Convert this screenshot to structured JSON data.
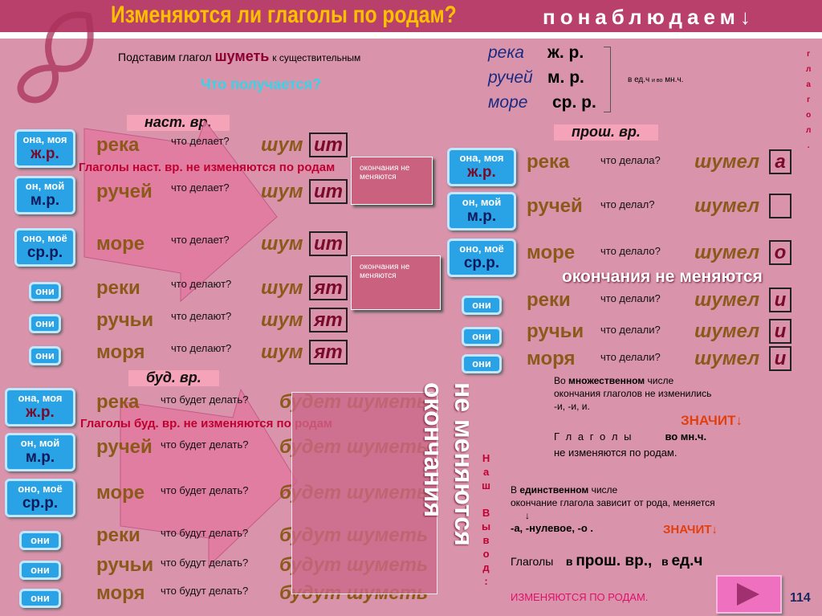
{
  "header": {
    "title": "Изменяются ли глаголы по родам?",
    "watch": "понаблюдаем↓"
  },
  "intro": {
    "pre": "Подставим глагол",
    "verb": "шуметь",
    "post": "к существительным",
    "question": "Что получается?"
  },
  "nouns_ref": [
    {
      "n": "река",
      "g": "ж. р."
    },
    {
      "n": "ручей",
      "g": "м. р."
    },
    {
      "n": "море",
      "g": "ср. р."
    }
  ],
  "number_note": {
    "a": "в ед.ч",
    "b": "и во",
    "c": "мн.ч."
  },
  "side_word": "г\nл\nа\nг\nо\nл\n.",
  "present": {
    "label": "наст. вр.",
    "arrow_text": "Глаголы наст. вр. не изменяются по родам",
    "rows": [
      {
        "p1": "она, моя",
        "p2": "ж.р.",
        "noun": "река",
        "q": "что делает?",
        "stem": "шум",
        "end": "ит"
      },
      {
        "p1": "он, мой",
        "p2": "м.р.",
        "noun": "ручей",
        "q": "что делает?",
        "stem": "шум",
        "end": "ит"
      },
      {
        "p1": "оно, моё",
        "p2": "ср.р.",
        "noun": "море",
        "q": "что делает?",
        "stem": "шум",
        "end": "ит"
      },
      {
        "p1": "они",
        "noun": "реки",
        "q": "что делают?",
        "stem": "шум",
        "end": "ят"
      },
      {
        "p1": "они",
        "noun": "ручьи",
        "q": "что делают?",
        "stem": "шум",
        "end": "ят"
      },
      {
        "p1": "они",
        "noun": "моря",
        "q": "что делают?",
        "stem": "шум",
        "end": "ят"
      }
    ],
    "note1": "окончания не меняются",
    "note2": "окончания не меняются"
  },
  "past": {
    "label": "прош. вр.",
    "overlay": "окончания не меняются",
    "rows": [
      {
        "p1": "она, моя",
        "p2": "ж.р.",
        "noun": "река",
        "q": "что делала?",
        "stem": "шумел",
        "end": "а"
      },
      {
        "p1": "он, мой",
        "p2": "м.р.",
        "noun": "ручей",
        "q": "что делал?",
        "stem": "шумел",
        "end": ""
      },
      {
        "p1": "оно, моё",
        "p2": "ср.р.",
        "noun": "море",
        "q": "что делало?",
        "stem": "шумел",
        "end": "о"
      },
      {
        "p1": "они",
        "noun": "реки",
        "q": "что делали?",
        "stem": "шумел",
        "end": "и"
      },
      {
        "p1": "они",
        "noun": "ручьи",
        "q": "что делали?",
        "stem": "шумел",
        "end": "и"
      },
      {
        "p1": "они",
        "noun": "моря",
        "q": "что делали?",
        "stem": "шумел",
        "end": "и"
      }
    ]
  },
  "future": {
    "label": "буд. вр.",
    "arrow_text": "Глаголы буд. вр. не изменяются по родам",
    "overlay_top": "окончания",
    "overlay_bottom": "не меняются",
    "rows": [
      {
        "p1": "она, моя",
        "p2": "ж.р.",
        "noun": "река",
        "q": "что будет делать?",
        "verb": "будет шуметь"
      },
      {
        "p1": "он, мой",
        "p2": "м.р.",
        "noun": "ручей",
        "q": "что будет делать?",
        "verb": "будет шуметь"
      },
      {
        "p1": "оно, моё",
        "p2": "ср.р.",
        "noun": "море",
        "q": "что будет делать?",
        "verb": "будет шуметь"
      },
      {
        "p1": "они",
        "noun": "реки",
        "q": "что будут делать?",
        "verb": "будут шуметь"
      },
      {
        "p1": "они",
        "noun": "ручьи",
        "q": "что будут делать?",
        "verb": "будут шуметь"
      },
      {
        "p1": "они",
        "noun": "моря",
        "q": "что будут делать?",
        "verb": "будут шуметь"
      }
    ]
  },
  "conclusion": {
    "side": "Н\nа\nш\n\nВ\nы\nв\nо\nд\n:",
    "plural_1a": "Во ",
    "plural_1b": "множественном",
    "plural_1c": " числе",
    "plural_2": "окончания  глаголов  не изменились",
    "plural_3": "-и, -и, и.",
    "therefore": "ЗНАЧИТ↓",
    "verbs_spaced": "Г л а г о л ы",
    "in_pl": "во мн.ч.",
    "not_change": "не изменяются по родам.",
    "sing_1a": "В ",
    "sing_1b": "единственном",
    "sing_1c": " числе",
    "sing_2": "окончание  глагола зависит от рода,  меняется",
    "arrow": "↓",
    "sing_3": "-а, -нулевое, -о .",
    "verbs": "Глаголы",
    "in1": "в",
    "past": "прош. вр.,",
    "in2": "в",
    "sing": "ед.ч",
    "change": "ИЗМЕНЯЮТСЯ  ПО  РОДАМ."
  },
  "page_number": "114",
  "colors": {
    "header": "#b8406a",
    "title": "#ffc000",
    "body": "#d994ac",
    "pronoun_box": "#2aa3e6"
  }
}
